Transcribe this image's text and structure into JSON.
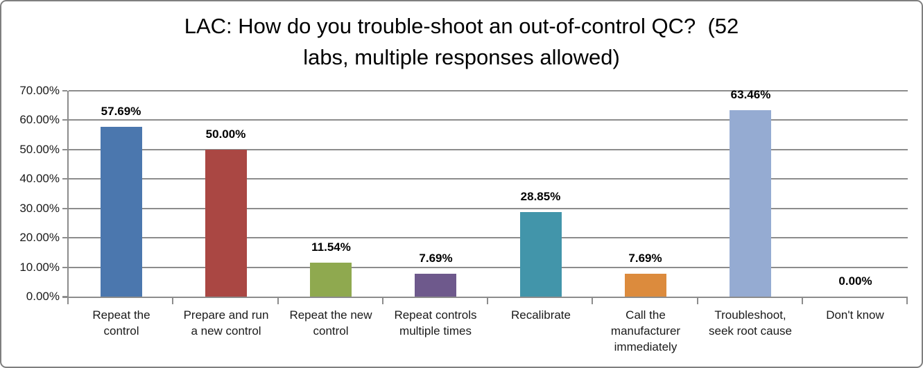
{
  "window": {
    "background_color": "#FFFFFF",
    "border_color": "#7F7F7F"
  },
  "title": {
    "line1": "LAC: How do you trouble-shoot an out-of-control QC?  (52",
    "line2": "labs, multiple responses allowed)"
  },
  "chart_data": {
    "type": "bar",
    "title": "LAC: How do you trouble-shoot an out-of-control QC?  (52 labs, multiple responses allowed)",
    "categories": [
      "Repeat the control",
      "Prepare and run a new control",
      "Repeat the new control",
      "Repeat controls multiple times",
      "Recalibrate",
      "Call the manufacturer immediately",
      "Troubleshoot, seek root cause",
      "Don't know"
    ],
    "values": [
      57.69,
      50.0,
      11.54,
      7.69,
      28.85,
      7.69,
      63.46,
      0.0
    ],
    "data_labels": [
      "57.69%",
      "50.00%",
      "11.54%",
      "7.69%",
      "28.85%",
      "7.69%",
      "63.46%",
      "0.00%"
    ],
    "bar_colors": [
      "#4B77AE",
      "#AA4743",
      "#8FA94F",
      "#6E598C",
      "#4295AA",
      "#DC8B3D",
      "#95ABD2",
      "#95ABD2"
    ],
    "xlabel": "",
    "ylabel": "",
    "ylim": [
      0,
      70
    ],
    "ytick_step": 10,
    "ytick_labels": [
      "0.00%",
      "10.00%",
      "20.00%",
      "30.00%",
      "40.00%",
      "50.00%",
      "60.00%",
      "70.00%"
    ],
    "grid": "horizontal",
    "legend": "none",
    "grid_color": "#8C8C8C",
    "axis_color": "#8C8C8C",
    "label_color": "#1A1A1A"
  }
}
